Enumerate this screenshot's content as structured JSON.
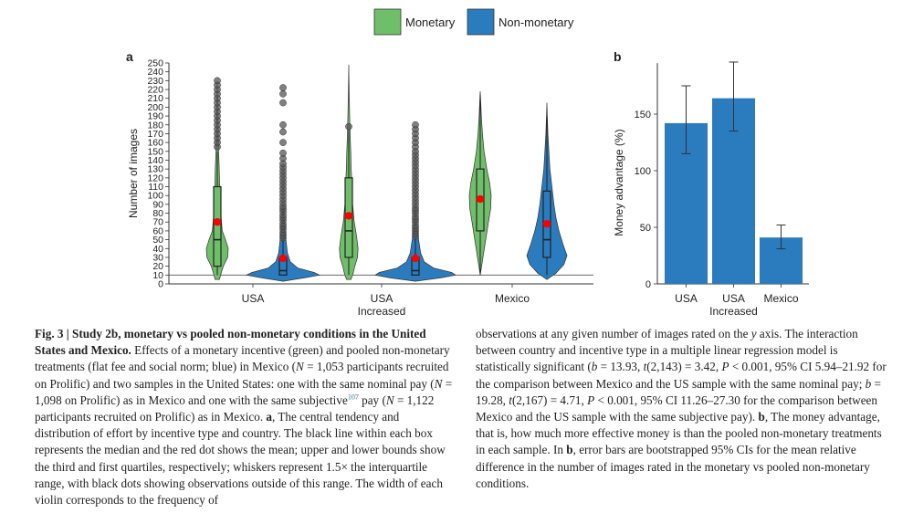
{
  "colors": {
    "monetary": "#6fbf6a",
    "non_monetary": "#2b7bbf",
    "mean_dot": "#ff0000",
    "outlier": "#333333"
  },
  "legend": [
    {
      "name": "Monetary",
      "color": "#6fbf6a"
    },
    {
      "name": "Non-monetary",
      "color": "#2b7bbf"
    }
  ],
  "chart_data": [
    {
      "type": "violin",
      "panel_label": "a",
      "ylabel": "Number of images",
      "ylim": [
        0,
        250
      ],
      "yticks": [
        0,
        10,
        20,
        30,
        40,
        50,
        60,
        70,
        80,
        90,
        100,
        110,
        120,
        130,
        140,
        150,
        160,
        170,
        180,
        190,
        200,
        210,
        220,
        230,
        240,
        250
      ],
      "reference_line": 10,
      "categories": [
        {
          "label": "USA",
          "sublabel": ""
        },
        {
          "label": "USA",
          "sublabel": "Increased"
        },
        {
          "label": "Mexico",
          "sublabel": ""
        }
      ],
      "series": [
        {
          "name": "Monetary",
          "groups": [
            {
              "q1": 20,
              "median": 50,
              "q3": 110,
              "mean": 70,
              "whisker_low": 10,
              "whisker_high": 150,
              "max": 228,
              "density": [
                [
                  5,
                  0.2
                ],
                [
                  12,
                  0.35
                ],
                [
                  20,
                  0.55
                ],
                [
                  30,
                  0.95
                ],
                [
                  40,
                  1.0
                ],
                [
                  50,
                  0.75
                ],
                [
                  60,
                  0.45
                ],
                [
                  75,
                  0.35
                ],
                [
                  90,
                  0.3
                ],
                [
                  110,
                  0.22
                ],
                [
                  130,
                  0.18
                ],
                [
                  150,
                  0.12
                ],
                [
                  170,
                  0.08
                ],
                [
                  190,
                  0.05
                ],
                [
                  210,
                  0.03
                ],
                [
                  228,
                  0
                ]
              ]
            },
            {
              "q1": 30,
              "median": 60,
              "q3": 120,
              "mean": 77,
              "whisker_low": 10,
              "whisker_high": 175,
              "max": 248,
              "density": [
                [
                  5,
                  0.2
                ],
                [
                  12,
                  0.4
                ],
                [
                  20,
                  0.55
                ],
                [
                  30,
                  0.8
                ],
                [
                  40,
                  0.85
                ],
                [
                  55,
                  0.7
                ],
                [
                  70,
                  0.5
                ],
                [
                  90,
                  0.35
                ],
                [
                  110,
                  0.3
                ],
                [
                  130,
                  0.22
                ],
                [
                  150,
                  0.18
                ],
                [
                  170,
                  0.12
                ],
                [
                  190,
                  0.08
                ],
                [
                  210,
                  0.05
                ],
                [
                  230,
                  0.02
                ],
                [
                  248,
                  0
                ]
              ]
            },
            {
              "q1": 60,
              "median": 95,
              "q3": 130,
              "mean": 96,
              "whisker_low": 10,
              "whisker_high": 215,
              "max": 218,
              "density": [
                [
                  10,
                  0
                ],
                [
                  30,
                  0.25
                ],
                [
                  50,
                  0.5
                ],
                [
                  70,
                  0.75
                ],
                [
                  85,
                  0.95
                ],
                [
                  100,
                  1.0
                ],
                [
                  115,
                  0.85
                ],
                [
                  130,
                  0.6
                ],
                [
                  150,
                  0.35
                ],
                [
                  170,
                  0.2
                ],
                [
                  190,
                  0.1
                ],
                [
                  205,
                  0.05
                ],
                [
                  218,
                  0
                ]
              ]
            }
          ]
        },
        {
          "name": "Non-monetary",
          "groups": [
            {
              "q1": 10,
              "median": 15,
              "q3": 30,
              "mean": 29,
              "whisker_low": 10,
              "whisker_high": 50,
              "max": 222,
              "density": [
                [
                  3,
                  0
                ],
                [
                  7,
                  0.6
                ],
                [
                  10,
                  1.0
                ],
                [
                  13,
                  0.85
                ],
                [
                  18,
                  0.4
                ],
                [
                  25,
                  0.2
                ],
                [
                  35,
                  0.12
                ],
                [
                  50,
                  0.08
                ],
                [
                  70,
                  0.03
                ],
                [
                  90,
                  0
                ]
              ]
            },
            {
              "q1": 10,
              "median": 15,
              "q3": 30,
              "mean": 29,
              "whisker_low": 10,
              "whisker_high": 52,
              "max": 181,
              "density": [
                [
                  3,
                  0
                ],
                [
                  7,
                  0.65
                ],
                [
                  10,
                  1.0
                ],
                [
                  13,
                  0.9
                ],
                [
                  18,
                  0.45
                ],
                [
                  25,
                  0.22
                ],
                [
                  35,
                  0.13
                ],
                [
                  50,
                  0.08
                ],
                [
                  70,
                  0.03
                ],
                [
                  90,
                  0
                ]
              ]
            },
            {
              "q1": 30,
              "median": 50,
              "q3": 105,
              "mean": 68,
              "whisker_low": 10,
              "whisker_high": 190,
              "max": 205,
              "density": [
                [
                  5,
                  0
                ],
                [
                  12,
                  0.45
                ],
                [
                  22,
                  0.85
                ],
                [
                  32,
                  1.0
                ],
                [
                  45,
                  0.8
                ],
                [
                  60,
                  0.6
                ],
                [
                  75,
                  0.45
                ],
                [
                  90,
                  0.35
                ],
                [
                  110,
                  0.25
                ],
                [
                  130,
                  0.15
                ],
                [
                  150,
                  0.1
                ],
                [
                  170,
                  0.05
                ],
                [
                  190,
                  0.02
                ],
                [
                  205,
                  0
                ]
              ]
            }
          ]
        }
      ],
      "outliers_nonmonetary_usa": [
        52,
        55,
        58,
        62,
        65,
        68,
        72,
        75,
        78,
        82,
        85,
        88,
        92,
        96,
        100,
        104,
        108,
        112,
        116,
        120,
        124,
        128,
        132,
        136,
        142,
        148,
        160,
        172,
        180,
        205,
        215,
        222
      ],
      "outliers_nonmonetary_increased": [
        54,
        57,
        60,
        63,
        66,
        70,
        73,
        76,
        80,
        83,
        86,
        90,
        94,
        98,
        102,
        106,
        110,
        114,
        118,
        122,
        126,
        130,
        134,
        138,
        142,
        146,
        150,
        155,
        160,
        165,
        170,
        175,
        180
      ],
      "outliers_monetary_usa": [
        52,
        56,
        60,
        64,
        68,
        72,
        76,
        80,
        84,
        88,
        92,
        96,
        100,
        104,
        108,
        112,
        116,
        120,
        124,
        128,
        132,
        136,
        140,
        145,
        150,
        155,
        160,
        165,
        170,
        175,
        180,
        185,
        190,
        195,
        200,
        205,
        210,
        215,
        220,
        225,
        230
      ],
      "outliers_monetary_increased": [
        50,
        54,
        58,
        62,
        66,
        70,
        74,
        78,
        82,
        86,
        90,
        94,
        98,
        102,
        106,
        110,
        114,
        118,
        122,
        126,
        130,
        134,
        138,
        142,
        146,
        150,
        154,
        158,
        162,
        166,
        170,
        174,
        178
      ]
    },
    {
      "type": "bar",
      "panel_label": "b",
      "ylabel": "Money advantage (%)",
      "ylim": [
        0,
        195
      ],
      "yticks": [
        0,
        50,
        100,
        150
      ],
      "categories": [
        {
          "label": "USA",
          "sublabel": ""
        },
        {
          "label": "USA",
          "sublabel": "Increased"
        },
        {
          "label": "Mexico",
          "sublabel": ""
        }
      ],
      "values": [
        142,
        164,
        41
      ],
      "ci_low": [
        115,
        135,
        31
      ],
      "ci_high": [
        175,
        196,
        52
      ]
    }
  ],
  "caption_left": {
    "title": "Fig. 3 | Study 2b, monetary vs pooled non-monetary conditions in the United States and Mexico.",
    "p1": " Effects of a monetary incentive (green) and pooled non-monetary treatments (flat fee and social norm; blue) in Mexico (",
    "n1": "N",
    "p2": " = 1,053 participants recruited on Prolific) and two samples in the United States: one with the same nominal pay (",
    "n2": "N",
    "p3": " = 1,098 on Prolific) as in Mexico and one with the same subjective",
    "ref": "107",
    "p4": " pay (",
    "n3": "N",
    "p5": " = 1,122 participants recruited on Prolific) as in Mexico. ",
    "a": "a",
    "p6": ", The central tendency and distribution of effort by incentive type and country. The black line within each box represents the median and the red dot shows the mean; upper and lower bounds show the third and first quartiles, respectively; whiskers represent 1.5× the interquartile range, with black dots showing observations outside of this range. The width of each violin corresponds to the frequency of"
  },
  "caption_right": {
    "p1": "observations at any given number of images rated on the ",
    "yaxis": "y",
    "p2": " axis. The interaction between country and incentive type in a multiple linear regression model is statistically significant (",
    "b1": "b",
    "p3": " = 13.93, ",
    "t1": "t",
    "p4": "(2,143) = 3.42, ",
    "P1": "P",
    "p5": " < 0.001, 95% CI 5.94–21.92 for the comparison between Mexico and the US sample with the same nominal pay; ",
    "b2": "b",
    "p6": " = 19.28, ",
    "t2": "t",
    "p7": "(2,167) = 4.71, ",
    "P2": "P",
    "p8": " < 0.001, 95% CI 11.26–27.30 for the comparison between Mexico and the US sample with the same subjective pay). ",
    "bpanel": "b",
    "p9": ", The money advantage, that is, how much more effective money is than the pooled non-monetary treatments in each sample. In ",
    "bpanel2": "b",
    "p10": ", error bars are bootstrapped 95% CIs for the mean relative difference in the number of images rated in the monetary vs pooled non-monetary conditions."
  }
}
